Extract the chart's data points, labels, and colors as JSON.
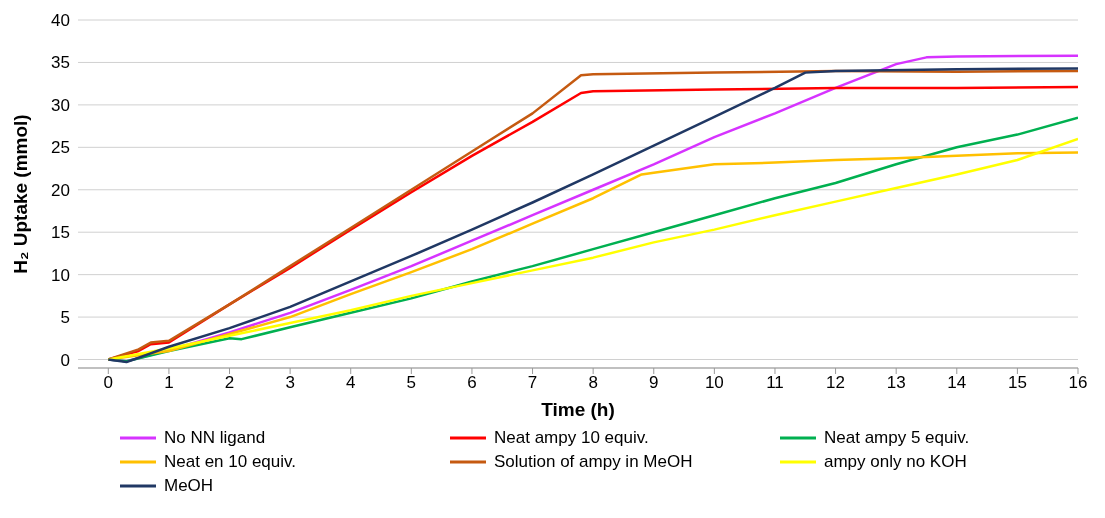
{
  "chart_data": {
    "type": "line",
    "xlabel": "Time (h)",
    "ylabel": "H₂  Uptake (mmol)",
    "xlim": [
      -0.5,
      16
    ],
    "xticks": [
      0,
      1,
      2,
      3,
      4,
      5,
      6,
      7,
      8,
      9,
      10,
      11,
      12,
      13,
      14,
      15,
      16
    ],
    "ylim": [
      -1,
      40
    ],
    "yticks": [
      0,
      5,
      10,
      15,
      20,
      25,
      30,
      35,
      40
    ],
    "grid": "y",
    "legend": "bottom",
    "marker": "none",
    "line_style": "solid",
    "series": [
      {
        "name": "No NN ligand",
        "color": "#d633ff",
        "x": [
          0,
          0.3,
          1,
          2,
          3,
          4,
          5,
          6,
          7,
          8,
          9,
          10,
          11,
          12,
          13,
          13.5,
          14,
          16
        ],
        "values": [
          0,
          -0.2,
          1.1,
          3.2,
          5.5,
          8.2,
          11,
          14,
          17,
          20,
          23,
          26.2,
          29,
          32,
          34.8,
          35.6,
          35.7,
          35.8
        ]
      },
      {
        "name": "Neat ampy 10 equiv.",
        "color": "#ff0000",
        "x": [
          0,
          0.5,
          0.7,
          1,
          2,
          3,
          4,
          5,
          6,
          7,
          7.8,
          8,
          10,
          12,
          14,
          16
        ],
        "values": [
          0,
          1,
          1.8,
          2,
          6.5,
          10.8,
          15.3,
          19.7,
          24,
          28,
          31.4,
          31.6,
          31.8,
          32,
          32,
          32.1
        ]
      },
      {
        "name": "Neat ampy 5 equiv.",
        "color": "#00b050",
        "x": [
          0,
          0.3,
          1,
          2,
          2.2,
          3,
          4,
          5,
          6,
          7,
          8,
          9,
          10,
          11,
          12,
          13,
          14,
          15,
          16
        ],
        "values": [
          0,
          -0.2,
          1,
          2.5,
          2.4,
          3.8,
          5.5,
          7.2,
          9.2,
          11,
          13,
          15,
          17,
          19,
          20.8,
          23,
          25,
          26.5,
          28.5
        ]
      },
      {
        "name": "Neat en 10 equiv.",
        "color": "#ffc000",
        "x": [
          0,
          1,
          2,
          3,
          4,
          5,
          6,
          7,
          8,
          8.8,
          9,
          10,
          11,
          12,
          13,
          14,
          15,
          16
        ],
        "values": [
          0,
          1,
          3,
          5,
          7.7,
          10.3,
          13,
          16,
          19,
          21.8,
          22,
          23,
          23.2,
          23.5,
          23.7,
          24,
          24.3,
          24.4
        ]
      },
      {
        "name": "Solution of ampy in MeOH",
        "color": "#c55a11",
        "x": [
          0,
          0.5,
          0.7,
          1,
          2,
          3,
          4,
          5,
          6,
          7,
          7.8,
          8,
          10,
          12,
          14,
          16
        ],
        "values": [
          0,
          1.2,
          2,
          2.2,
          6.5,
          11,
          15.5,
          20,
          24.5,
          29,
          33.5,
          33.6,
          33.8,
          34,
          33.9,
          34
        ]
      },
      {
        "name": "ampy only no KOH",
        "color": "#ffff00",
        "x": [
          0,
          1,
          2,
          3,
          4,
          5,
          6,
          7,
          8,
          9,
          10,
          11,
          12,
          13,
          14,
          15,
          16
        ],
        "values": [
          0,
          1.3,
          2.8,
          4.3,
          5.8,
          7.5,
          9,
          10.5,
          12,
          13.8,
          15.3,
          17,
          18.6,
          20.2,
          21.8,
          23.5,
          26
        ]
      },
      {
        "name": "MeOH",
        "color": "#203864",
        "x": [
          0,
          0.3,
          1,
          2,
          3,
          4,
          5,
          6,
          7,
          8,
          9,
          10,
          11,
          11.5,
          12,
          14,
          16
        ],
        "values": [
          0,
          -0.3,
          1.5,
          3.7,
          6.2,
          9.2,
          12.2,
          15.3,
          18.5,
          21.8,
          25.2,
          28.6,
          32,
          33.8,
          34,
          34.2,
          34.3
        ]
      }
    ]
  }
}
